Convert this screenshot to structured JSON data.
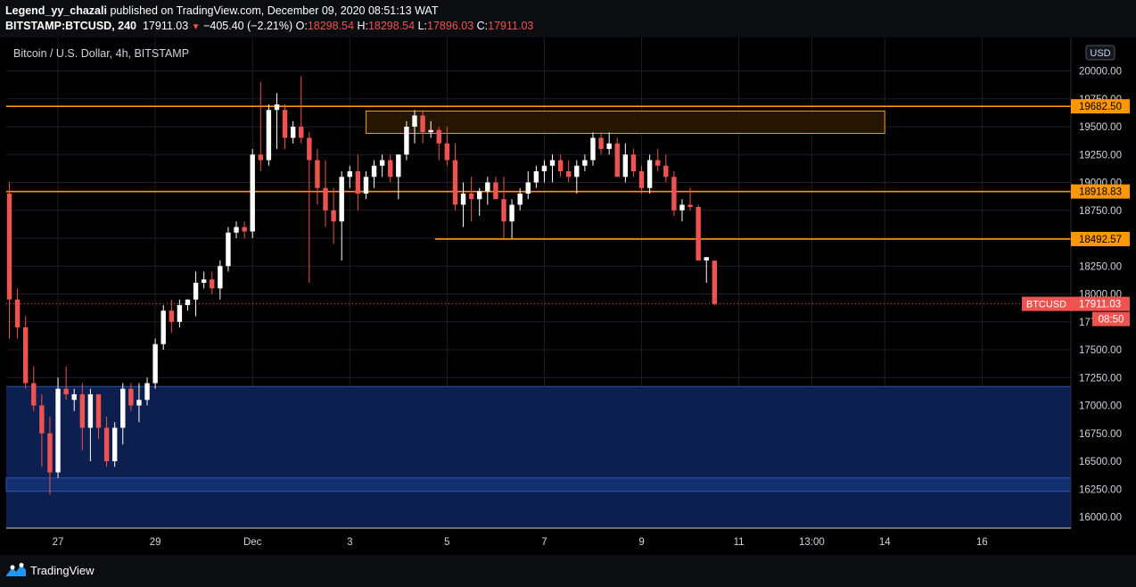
{
  "header": {
    "author": "Legend_yy_chazali",
    "published_text": "published on TradingView.com, December 09, 2020 08:51:13 WAT",
    "symbol": "BITSTAMP:BTCUSD, 240",
    "last": "17911.03",
    "change": "−405.40 (−2.21%)",
    "o_label": "O:",
    "o_value": "18298.54",
    "h_label": "H:",
    "h_value": "18298.54",
    "l_label": "L:",
    "l_value": "17896.03",
    "c_label": "C:",
    "c_value": "17911.03"
  },
  "chart_title": "Bitcoin / U.S. Dollar, 4h, BITSTAMP",
  "currency_button": "USD",
  "footer": {
    "brand": "TradingView"
  },
  "colors": {
    "up": "#ffffff",
    "down": "#ef5350",
    "level": "#ff9800",
    "zone": "#0d2152",
    "zone_border": "#2a56b8",
    "axis_bg": "#000000"
  },
  "chart_data": {
    "type": "candlestick",
    "yaxis": {
      "range": [
        15900,
        20300
      ],
      "ticks": [
        16000,
        16250,
        16500,
        16750,
        17000,
        17250,
        17500,
        17750,
        18000,
        18250,
        18500,
        18750,
        19000,
        19250,
        19500,
        19750,
        20000
      ],
      "tick_labels": [
        "16000.00",
        "16250.00",
        "16500.00",
        "16750.00",
        "17000.00",
        "17250.00",
        "17500.00",
        "17750.00",
        "18000.00",
        "18250.00",
        "18500.00",
        "18750.00",
        "19000.00",
        "19250.00",
        "19500.00",
        "19750.00",
        "20000.00"
      ]
    },
    "xaxis": {
      "labels": [
        "27",
        "29",
        "Dec",
        "3",
        "5",
        "7",
        "9",
        "11",
        "13:00",
        "14",
        "16"
      ],
      "label_bars": [
        6,
        18,
        30,
        42,
        54,
        66,
        78,
        90,
        99,
        108,
        120
      ]
    },
    "level_lines": [
      {
        "value": 19682.5,
        "label": "19682.50",
        "start_bar": 0
      },
      {
        "value": 18918.83,
        "label": "18918.83",
        "start_bar": 0
      },
      {
        "value": 18492.57,
        "label": "18492.57",
        "start_bar": 52.5
      }
    ],
    "supply_zone": {
      "top": 19640,
      "bottom": 19440,
      "start_bar": 44,
      "end_bar": 108
    },
    "demand_zone": {
      "top": 17170,
      "bottom": 15900,
      "inner_line": 16350,
      "inner_bottom": 16230
    },
    "last_price": {
      "value": 17911.03,
      "label": "17911.03",
      "symbol_label": "BTCUSD",
      "countdown": "08:50"
    },
    "candles": [
      [
        18900,
        19000,
        17600,
        17950
      ],
      [
        17950,
        18050,
        17600,
        17700
      ],
      [
        17700,
        17800,
        17150,
        17200
      ],
      [
        17200,
        17350,
        16950,
        17000
      ],
      [
        17000,
        17100,
        16450,
        16750
      ],
      [
        16750,
        16900,
        16200,
        16400
      ],
      [
        16400,
        17250,
        16350,
        17150
      ],
      [
        17150,
        17350,
        17050,
        17100
      ],
      [
        17050,
        17150,
        16950,
        17100
      ],
      [
        17100,
        17200,
        16600,
        16800
      ],
      [
        16800,
        17150,
        16500,
        17100
      ],
      [
        17100,
        17100,
        16700,
        16800
      ],
      [
        16800,
        16900,
        16450,
        16500
      ],
      [
        16500,
        16850,
        16450,
        16800
      ],
      [
        16800,
        17200,
        16650,
        17150
      ],
      [
        17150,
        17200,
        16950,
        17000
      ],
      [
        17000,
        17200,
        16850,
        17050
      ],
      [
        17050,
        17250,
        17000,
        17200
      ],
      [
        17200,
        17600,
        17150,
        17550
      ],
      [
        17550,
        17900,
        17500,
        17850
      ],
      [
        17850,
        17950,
        17650,
        17750
      ],
      [
        17750,
        17950,
        17700,
        17900
      ],
      [
        17900,
        17950,
        17850,
        17950
      ],
      [
        17950,
        18200,
        17800,
        18100
      ],
      [
        18100,
        18200,
        18050,
        18130
      ],
      [
        18130,
        18200,
        18000,
        18050
      ],
      [
        18050,
        18300,
        17950,
        18250
      ],
      [
        18250,
        18600,
        18200,
        18550
      ],
      [
        18550,
        18650,
        18500,
        18600
      ],
      [
        18600,
        18650,
        18500,
        18560
      ],
      [
        18560,
        19300,
        18500,
        19250
      ],
      [
        19250,
        19900,
        19100,
        19200
      ],
      [
        19200,
        19700,
        19150,
        19650
      ],
      [
        19650,
        19800,
        19300,
        19700
      ],
      [
        19650,
        19700,
        19300,
        19400
      ],
      [
        19400,
        19550,
        19350,
        19500
      ],
      [
        19500,
        19950,
        19350,
        19400
      ],
      [
        19400,
        19450,
        18100,
        19200
      ],
      [
        19200,
        19300,
        18800,
        18950
      ],
      [
        18950,
        19200,
        18600,
        18750
      ],
      [
        18750,
        18950,
        18450,
        18650
      ],
      [
        18650,
        19100,
        18300,
        19050
      ],
      [
        19050,
        19150,
        18950,
        19100
      ],
      [
        19100,
        19250,
        18750,
        18900
      ],
      [
        18900,
        19100,
        18850,
        19050
      ],
      [
        19050,
        19200,
        18950,
        19150
      ],
      [
        19150,
        19250,
        19050,
        19200
      ],
      [
        19200,
        19250,
        19000,
        19050
      ],
      [
        19050,
        19250,
        18850,
        19250
      ],
      [
        19250,
        19550,
        19200,
        19500
      ],
      [
        19500,
        19650,
        19350,
        19600
      ],
      [
        19600,
        19650,
        19350,
        19450
      ],
      [
        19450,
        19550,
        19400,
        19470
      ],
      [
        19470,
        19500,
        19200,
        19350
      ],
      [
        19350,
        19500,
        19150,
        19200
      ],
      [
        19200,
        19350,
        18750,
        18800
      ],
      [
        18800,
        19000,
        18600,
        18900
      ],
      [
        18900,
        19050,
        18650,
        18850
      ],
      [
        18850,
        18950,
        18700,
        18920
      ],
      [
        18920,
        19050,
        18800,
        19000
      ],
      [
        19000,
        19050,
        18850,
        18850
      ],
      [
        18850,
        19050,
        18500,
        18650
      ],
      [
        18650,
        18850,
        18500,
        18800
      ],
      [
        18800,
        18950,
        18750,
        18900
      ],
      [
        18900,
        19100,
        18850,
        19000
      ],
      [
        19000,
        19150,
        18950,
        19100
      ],
      [
        19100,
        19200,
        19000,
        19150
      ],
      [
        19150,
        19250,
        19000,
        19200
      ],
      [
        19200,
        19250,
        19050,
        19100
      ],
      [
        19100,
        19200,
        19000,
        19050
      ],
      [
        19050,
        19200,
        18900,
        19150
      ],
      [
        19150,
        19250,
        19100,
        19200
      ],
      [
        19200,
        19450,
        19150,
        19400
      ],
      [
        19400,
        19450,
        19250,
        19300
      ],
      [
        19300,
        19450,
        19250,
        19350
      ],
      [
        19350,
        19400,
        19050,
        19050
      ],
      [
        19050,
        19350,
        19000,
        19250
      ],
      [
        19250,
        19300,
        19050,
        19100
      ],
      [
        19100,
        19150,
        18900,
        18950
      ],
      [
        18950,
        19250,
        18900,
        19200
      ],
      [
        19200,
        19300,
        19100,
        19150
      ],
      [
        19150,
        19250,
        19000,
        19050
      ],
      [
        19050,
        19100,
        18700,
        18750
      ],
      [
        18750,
        18850,
        18650,
        18800
      ],
      [
        18800,
        18950,
        18750,
        18780
      ],
      [
        18780,
        18800,
        18300,
        18300
      ],
      [
        18300,
        18330,
        18100,
        18330
      ],
      [
        18298.54,
        18298.54,
        17896.03,
        17911.03
      ]
    ]
  }
}
